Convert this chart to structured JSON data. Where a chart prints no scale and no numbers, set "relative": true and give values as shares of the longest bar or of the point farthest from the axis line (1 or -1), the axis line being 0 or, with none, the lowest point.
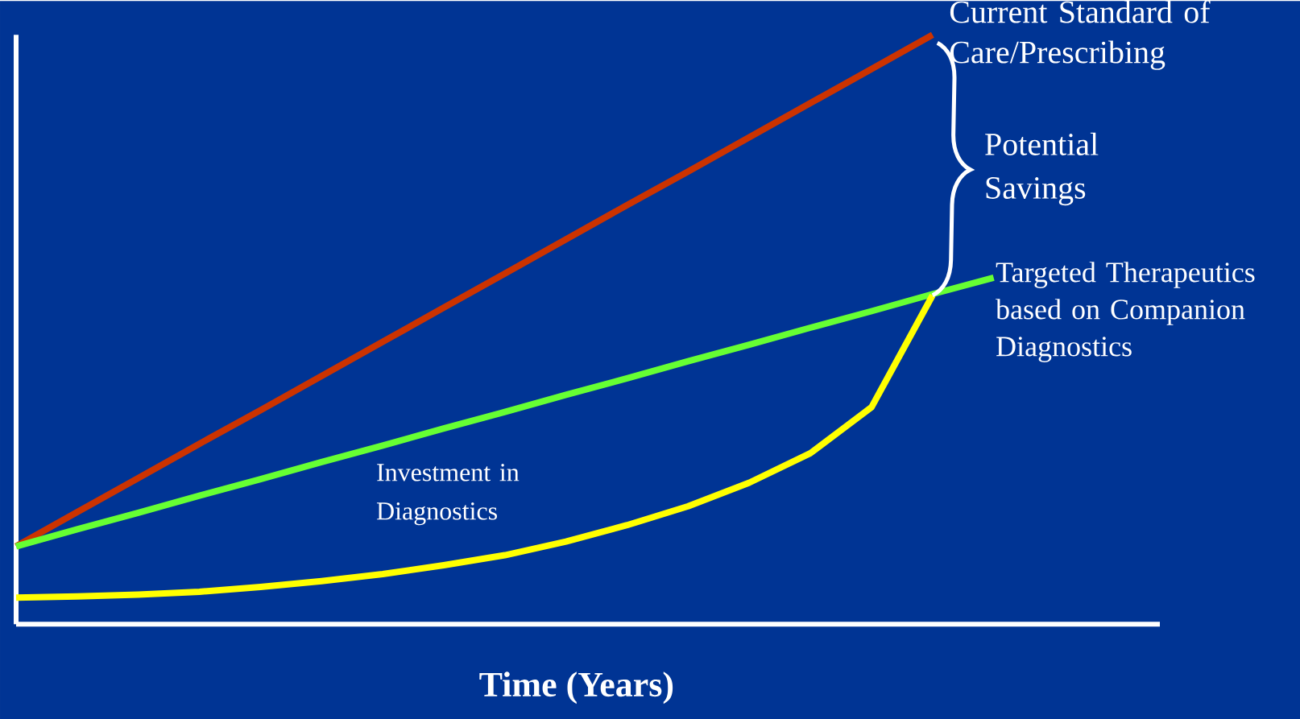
{
  "chart_data": {
    "type": "line",
    "relative": true,
    "xlabel": "Time (Years)",
    "annotations": [
      "Potential Savings",
      "Investment in Diagnostics"
    ],
    "categories": [
      null,
      null,
      null,
      null,
      null,
      null,
      null,
      null,
      null,
      null,
      null,
      null,
      null,
      null,
      null,
      null,
      null
    ],
    "series": [
      {
        "name": "Current Standard of Care/Prescribing",
        "color": "#cc3300",
        "values": [
          0.132,
          0.19,
          0.248,
          0.306,
          0.363,
          0.421,
          0.479,
          0.537,
          0.595,
          0.653,
          0.711,
          0.768,
          0.826,
          0.884,
          0.942,
          1.0,
          null
        ]
      },
      {
        "name": "Targeted Therapeutics based on Companion Diagnostics",
        "color": "#66ff33",
        "values": [
          0.132,
          0.161,
          0.189,
          0.218,
          0.246,
          0.275,
          0.303,
          0.332,
          0.36,
          0.389,
          0.417,
          0.446,
          0.474,
          0.503,
          0.531,
          0.56,
          0.588
        ]
      },
      {
        "color": "#ffff00",
        "values": [
          0.045,
          0.047,
          0.05,
          0.055,
          0.063,
          0.073,
          0.085,
          0.1,
          0.117,
          0.14,
          0.168,
          0.2,
          0.24,
          0.29,
          0.368,
          0.558,
          null
        ]
      }
    ]
  }
}
